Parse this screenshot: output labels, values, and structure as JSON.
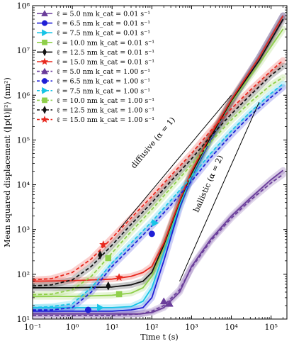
{
  "chart_data": {
    "type": "line",
    "xlabel": "Time t (s)",
    "ylabel": "Mean squared displacement ⟨‖p(t)‖²⟩ (nm²)",
    "xscale": "log",
    "yscale": "log",
    "xlim": [
      0.1,
      250000
    ],
    "ylim": [
      10,
      100000000
    ],
    "x_ticks": [
      {
        "value": 0.1,
        "label": "10⁻¹"
      },
      {
        "value": 1,
        "label": "10⁰"
      },
      {
        "value": 10,
        "label": "10¹"
      },
      {
        "value": 100,
        "label": "10²"
      },
      {
        "value": 1000,
        "label": "10³"
      },
      {
        "value": 10000,
        "label": "10⁴"
      },
      {
        "value": 100000,
        "label": "10⁵"
      }
    ],
    "y_ticks": [
      {
        "value": 10,
        "label": "10¹"
      },
      {
        "value": 100,
        "label": "10²"
      },
      {
        "value": 1000,
        "label": "10³"
      },
      {
        "value": 10000,
        "label": "10⁴"
      },
      {
        "value": 100000,
        "label": "10⁵"
      },
      {
        "value": 1000000,
        "label": "10⁶"
      },
      {
        "value": 10000000,
        "label": "10⁷"
      },
      {
        "value": 100000000,
        "label": "10⁸"
      }
    ],
    "legend_position": "top-left",
    "series": [
      {
        "label": "ℓ = 5.0 nm    k_cat = 0.01 s⁻¹",
        "color": "#6a3d9a",
        "dash": "solid",
        "marker": "triangle-up",
        "x": [
          0.1,
          1,
          10,
          50,
          100,
          200,
          500,
          1000,
          3000,
          10000,
          30000,
          100000,
          200000
        ],
        "y": [
          13,
          13,
          13,
          13,
          14,
          18,
          40,
          150,
          600,
          2000,
          5000,
          13000,
          21000
        ],
        "markers": [
          {
            "x": 200,
            "y": 25
          }
        ]
      },
      {
        "label": "ℓ = 6.5 nm    k_cat = 0.01 s⁻¹",
        "color": "#1f1fd6",
        "dash": "solid",
        "marker": "circle",
        "x": [
          0.1,
          1,
          10,
          30,
          60,
          100,
          200,
          500,
          1000,
          3000,
          10000,
          50000,
          200000
        ],
        "y": [
          15,
          15,
          15,
          16,
          18,
          30,
          200,
          3000,
          15000,
          100000,
          700000,
          7000000,
          60000000
        ],
        "markers": [
          {
            "x": 2.5,
            "y": 16
          }
        ]
      },
      {
        "label": "ℓ = 7.5 nm    k_cat = 0.01 s⁻¹",
        "color": "#17c4e6",
        "dash": "solid",
        "marker": "triangle-right",
        "x": [
          0.1,
          1,
          10,
          30,
          60,
          100,
          200,
          500,
          1000,
          3000,
          10000,
          50000,
          200000
        ],
        "y": [
          18,
          18,
          18,
          19,
          25,
          50,
          300,
          3500,
          16000,
          110000,
          750000,
          7000000,
          60000000
        ],
        "markers": [
          {
            "x": 5,
            "y": 18
          }
        ]
      },
      {
        "label": "ℓ = 10.0 nm   k_cat = 0.01 s⁻¹",
        "color": "#8fcf4a",
        "dash": "solid",
        "marker": "square",
        "x": [
          0.1,
          1,
          10,
          30,
          60,
          100,
          200,
          500,
          1000,
          3000,
          10000,
          50000,
          200000
        ],
        "y": [
          32,
          32,
          34,
          38,
          50,
          90,
          400,
          4000,
          17000,
          110000,
          700000,
          5000000,
          30000000
        ],
        "markers": [
          {
            "x": 15,
            "y": 36
          }
        ]
      },
      {
        "label": "ℓ = 12.5 nm   k_cat = 0.01 s⁻¹",
        "color": "#111111",
        "dash": "solid",
        "marker": "diamond",
        "x": [
          0.1,
          1,
          10,
          30,
          60,
          100,
          200,
          500,
          1000,
          3000,
          10000,
          50000,
          200000
        ],
        "y": [
          50,
          50,
          52,
          58,
          70,
          110,
          450,
          4200,
          18000,
          115000,
          750000,
          6000000,
          50000000
        ],
        "markers": [
          {
            "x": 8,
            "y": 55
          }
        ]
      },
      {
        "label": "ℓ = 15.0 nm   k_cat = 0.01 s⁻¹",
        "color": "#e8281e",
        "dash": "solid",
        "marker": "star",
        "x": [
          0.1,
          1,
          10,
          30,
          60,
          100,
          200,
          500,
          1000,
          3000,
          10000,
          50000,
          200000
        ],
        "y": [
          70,
          72,
          78,
          90,
          110,
          150,
          500,
          4500,
          20000,
          130000,
          800000,
          7000000,
          60000000
        ],
        "markers": [
          {
            "x": 15,
            "y": 85
          }
        ]
      },
      {
        "label": "ℓ = 5.0 nm    k_cat = 1.00 s⁻¹",
        "color": "#6a3d9a",
        "dash": "dashed",
        "marker": "triangle-up",
        "x": [
          0.1,
          1,
          10,
          50,
          100,
          200,
          500,
          1000,
          3000,
          10000,
          30000,
          100000,
          200000
        ],
        "y": [
          12,
          12,
          12,
          13,
          15,
          20,
          45,
          140,
          550,
          1800,
          4500,
          11000,
          17000
        ],
        "markers": [
          {
            "x": 280,
            "y": 22
          }
        ]
      },
      {
        "label": "ℓ = 6.5 nm    k_cat = 1.00 s⁻¹",
        "color": "#1f1fd6",
        "dash": "dashed",
        "marker": "circle",
        "x": [
          0.1,
          0.3,
          1,
          3,
          10,
          30,
          100,
          300,
          1000,
          3000,
          10000,
          30000,
          100000,
          200000
        ],
        "y": [
          16,
          16,
          18,
          40,
          150,
          400,
          1200,
          3500,
          12000,
          40000,
          130000,
          350000,
          900000,
          1500000
        ],
        "markers": [
          {
            "x": 100,
            "y": 800
          }
        ]
      },
      {
        "label": "ℓ = 7.5 nm    k_cat = 1.00 s⁻¹",
        "color": "#17c4e6",
        "dash": "dashed",
        "marker": "triangle-right",
        "x": [
          0.1,
          0.3,
          1,
          3,
          10,
          30,
          100,
          300,
          1000,
          3000,
          10000,
          30000,
          100000,
          200000
        ],
        "y": [
          18,
          19,
          22,
          50,
          180,
          500,
          1500,
          4500,
          15000,
          50000,
          160000,
          420000,
          1100000,
          1800000
        ],
        "markers": [
          {
            "x": 120,
            "y": 1400
          }
        ]
      },
      {
        "label": "ℓ = 10.0 nm   k_cat = 1.00 s⁻¹",
        "color": "#8fcf4a",
        "dash": "dashed",
        "marker": "square",
        "x": [
          0.1,
          0.3,
          1,
          3,
          10,
          30,
          100,
          300,
          1000,
          3000,
          10000,
          30000,
          100000,
          200000
        ],
        "y": [
          35,
          36,
          45,
          90,
          300,
          900,
          2800,
          8500,
          28000,
          90000,
          280000,
          700000,
          1700000,
          2500000
        ],
        "markers": [
          {
            "x": 8,
            "y": 230
          }
        ]
      },
      {
        "label": "ℓ = 12.5 nm   k_cat = 1.00 s⁻¹",
        "color": "#111111",
        "dash": "dashed",
        "marker": "diamond",
        "x": [
          0.1,
          0.3,
          1,
          3,
          10,
          30,
          100,
          300,
          1000,
          3000,
          10000,
          30000,
          100000,
          200000
        ],
        "y": [
          55,
          58,
          75,
          150,
          450,
          1300,
          4000,
          12000,
          38000,
          120000,
          380000,
          1000000,
          2800000,
          4500000
        ],
        "markers": [
          {
            "x": 5,
            "y": 270
          }
        ]
      },
      {
        "label": "ℓ = 15.0 nm   k_cat = 1.00 s⁻¹",
        "color": "#e8281e",
        "dash": "dashed",
        "marker": "star",
        "x": [
          0.1,
          0.3,
          1,
          3,
          10,
          30,
          100,
          300,
          1000,
          3000,
          10000,
          30000,
          100000,
          200000
        ],
        "y": [
          75,
          80,
          110,
          220,
          650,
          1800,
          5500,
          16000,
          50000,
          160000,
          500000,
          1300000,
          3500000,
          6000000
        ],
        "markers": [
          {
            "x": 6,
            "y": 460
          }
        ]
      }
    ],
    "reference_lines": [
      {
        "label": "diffusive (α = 1)",
        "x": [
          15,
          10000
        ],
        "y": [
          1000,
          1000000
        ],
        "label_at": {
          "x": 120,
          "y": 80000
        }
      },
      {
        "label": "ballistic (α = 2)",
        "x": [
          500,
          50000
        ],
        "y": [
          70,
          700000
        ],
        "label_at": {
          "x": 3000,
          "y": 10000
        }
      }
    ]
  }
}
